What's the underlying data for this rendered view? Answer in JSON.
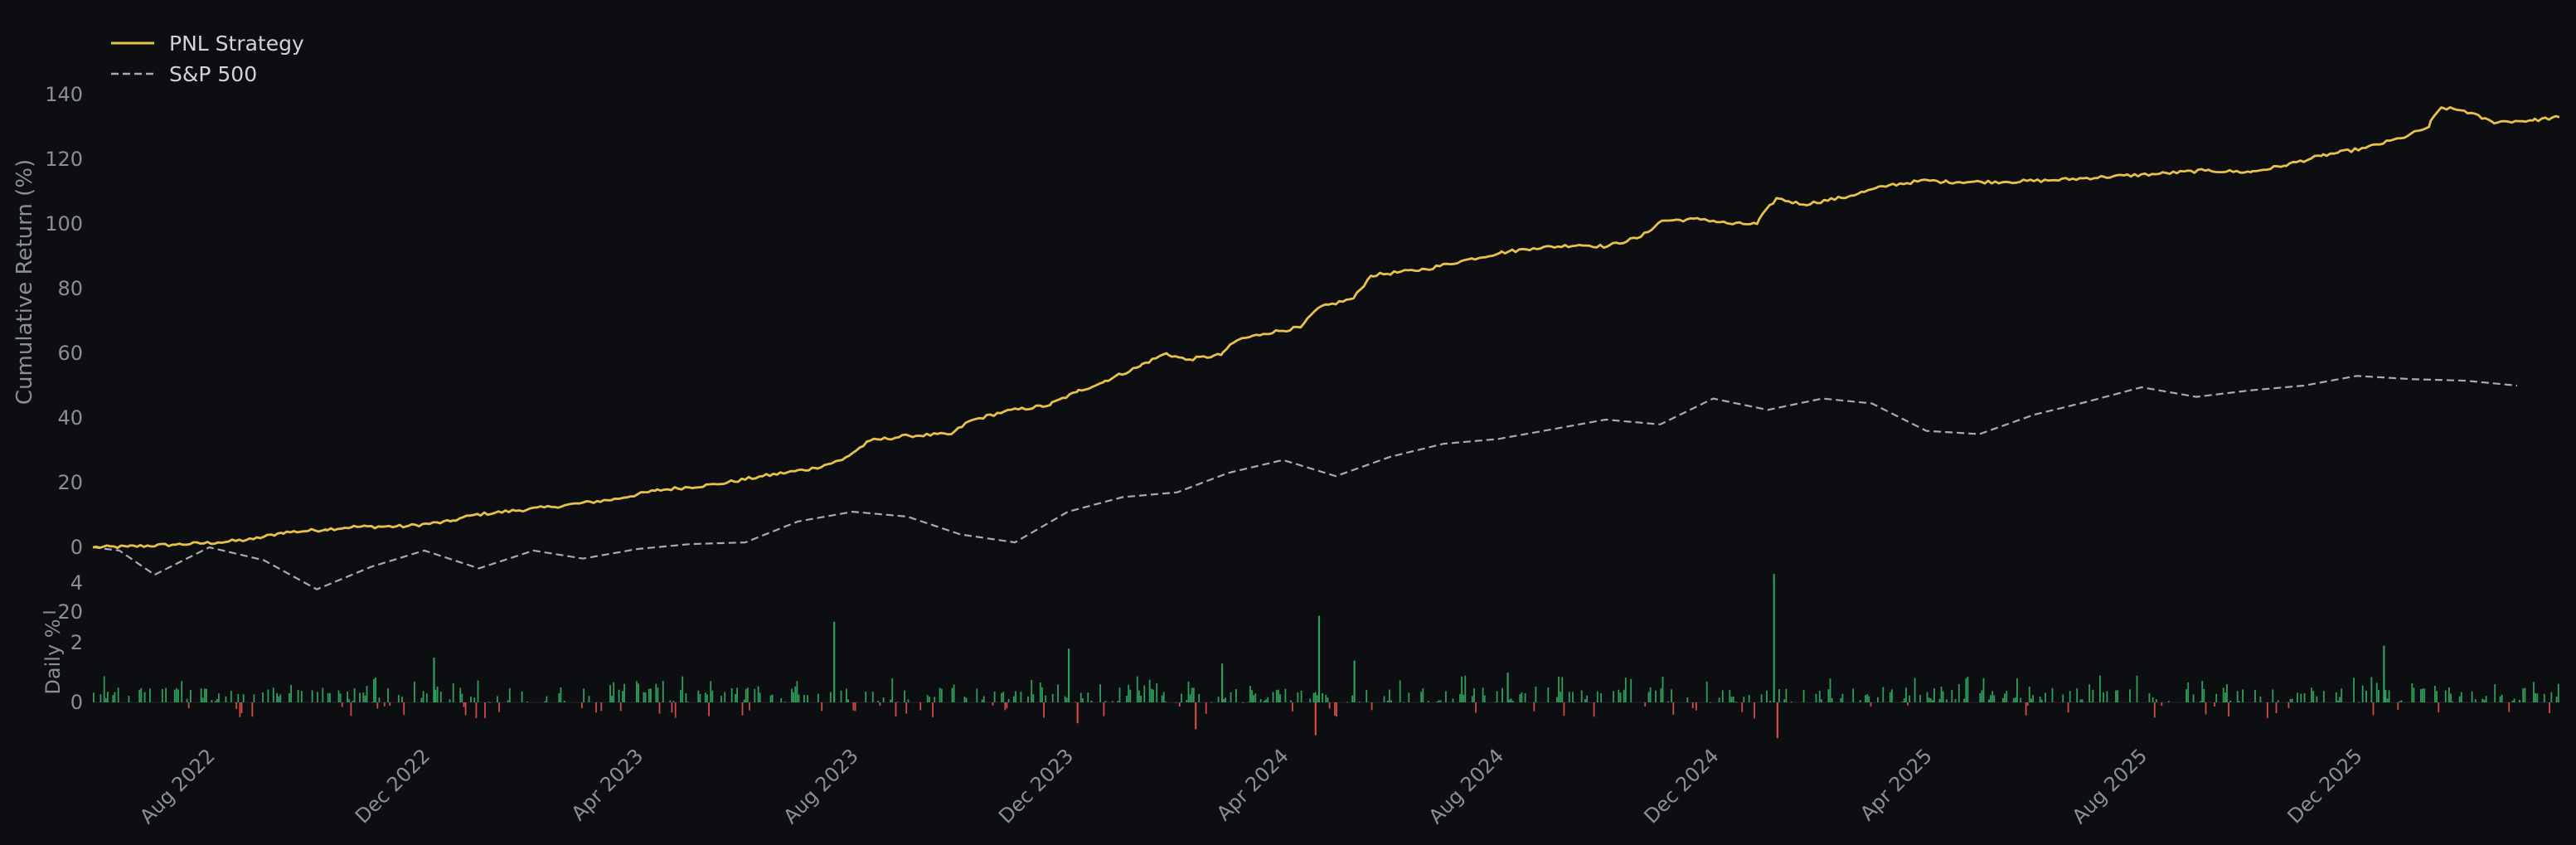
{
  "chart_data": [
    {
      "type": "line",
      "title": "",
      "xlabel": "",
      "ylabel": "Cumulative Return (%)",
      "ylim": [
        -22,
        142
      ],
      "yticks": [
        140,
        120,
        100,
        80,
        60,
        40,
        20,
        0,
        -20
      ],
      "ytick_labels": [
        "140",
        "120",
        "100",
        "80",
        "60",
        "40",
        "20",
        "0",
        "−20"
      ],
      "grid": false,
      "legend_position": "top-left",
      "series": [
        {
          "name": "PNL Strategy",
          "color": "#e8c14a",
          "style": "solid",
          "points": [
            [
              "2022-05-26",
              0
            ],
            [
              "2022-06-15",
              0.2
            ],
            [
              "2022-07-10",
              0.8
            ],
            [
              "2022-08-05",
              1.5
            ],
            [
              "2022-08-25",
              2.5
            ],
            [
              "2022-09-10",
              4.5
            ],
            [
              "2022-10-05",
              5.5
            ],
            [
              "2022-10-20",
              6.3
            ],
            [
              "2022-11-20",
              6.5
            ],
            [
              "2022-12-15",
              8.0
            ],
            [
              "2022-12-28",
              10.0
            ],
            [
              "2023-02-10",
              12.5
            ],
            [
              "2023-03-20",
              15.0
            ],
            [
              "2023-04-10",
              17.5
            ],
            [
              "2023-05-15",
              19.5
            ],
            [
              "2023-06-10",
              22.0
            ],
            [
              "2023-07-10",
              24.5
            ],
            [
              "2023-07-25",
              27.0
            ],
            [
              "2023-08-10",
              33.0
            ],
            [
              "2023-09-01",
              34.5
            ],
            [
              "2023-09-25",
              35.0
            ],
            [
              "2023-10-05",
              39.0
            ],
            [
              "2023-10-25",
              42.0
            ],
            [
              "2023-11-20",
              44.0
            ],
            [
              "2023-12-05",
              48.0
            ],
            [
              "2023-12-20",
              51.0
            ],
            [
              "2024-01-10",
              56.0
            ],
            [
              "2024-01-25",
              60.0
            ],
            [
              "2024-02-05",
              58.0
            ],
            [
              "2024-02-25",
              59.5
            ],
            [
              "2024-03-05",
              64.0
            ],
            [
              "2024-03-20",
              66.0
            ],
            [
              "2024-04-10",
              68.0
            ],
            [
              "2024-04-20",
              74.0
            ],
            [
              "2024-05-10",
              77.0
            ],
            [
              "2024-05-20",
              84.0
            ],
            [
              "2024-06-20",
              86.0
            ],
            [
              "2024-07-10",
              88.5
            ],
            [
              "2024-08-01",
              91.0
            ],
            [
              "2024-08-20",
              92.5
            ],
            [
              "2024-09-15",
              93.5
            ],
            [
              "2024-10-01",
              93.0
            ],
            [
              "2024-10-20",
              96.0
            ],
            [
              "2024-11-01",
              101.0
            ],
            [
              "2024-11-25",
              101.5
            ],
            [
              "2024-12-10",
              100.0
            ],
            [
              "2024-12-25",
              100.0
            ],
            [
              "2025-01-05",
              108.0
            ],
            [
              "2025-01-20",
              106.0
            ],
            [
              "2025-02-15",
              108.5
            ],
            [
              "2025-03-10",
              112.0
            ],
            [
              "2025-04-01",
              113.5
            ],
            [
              "2025-04-10",
              113.0
            ],
            [
              "2025-05-15",
              113.0
            ],
            [
              "2025-06-10",
              113.5
            ],
            [
              "2025-07-10",
              114.5
            ],
            [
              "2025-08-10",
              115.5
            ],
            [
              "2025-09-05",
              116.5
            ],
            [
              "2025-10-01",
              116.0
            ],
            [
              "2025-10-20",
              118.0
            ],
            [
              "2025-11-10",
              121.0
            ],
            [
              "2025-12-05",
              123.5
            ],
            [
              "2025-12-25",
              126.5
            ],
            [
              "2026-01-10",
              130.0
            ],
            [
              "2026-01-17",
              136.0
            ],
            [
              "2026-01-30",
              135.0
            ],
            [
              "2026-02-15",
              131.5
            ],
            [
              "2026-03-10",
              132.0
            ],
            [
              "2026-03-25",
              133.0
            ]
          ]
        },
        {
          "name": "S&P 500",
          "color": "#a9abb0",
          "style": "dashed",
          "points": [
            [
              "2022-05-26",
              0
            ],
            [
              "2022-06-10",
              -1
            ],
            [
              "2022-06-30",
              -8.5
            ],
            [
              "2022-07-31",
              0
            ],
            [
              "2022-08-31",
              -4
            ],
            [
              "2022-09-30",
              -13
            ],
            [
              "2022-10-31",
              -6
            ],
            [
              "2022-11-30",
              -1
            ],
            [
              "2022-12-31",
              -6.5
            ],
            [
              "2023-01-31",
              -1
            ],
            [
              "2023-02-28",
              -3.5
            ],
            [
              "2023-03-31",
              -0.5
            ],
            [
              "2023-04-30",
              1
            ],
            [
              "2023-05-31",
              1.5
            ],
            [
              "2023-06-30",
              8
            ],
            [
              "2023-07-31",
              11
            ],
            [
              "2023-08-31",
              9.5
            ],
            [
              "2023-09-30",
              4
            ],
            [
              "2023-10-31",
              1.5
            ],
            [
              "2023-11-30",
              11
            ],
            [
              "2023-12-31",
              15.5
            ],
            [
              "2024-01-31",
              17
            ],
            [
              "2024-02-29",
              23
            ],
            [
              "2024-03-31",
              27
            ],
            [
              "2024-04-30",
              22
            ],
            [
              "2024-05-31",
              28
            ],
            [
              "2024-06-30",
              32
            ],
            [
              "2024-07-31",
              33.5
            ],
            [
              "2024-08-31",
              36.5
            ],
            [
              "2024-09-30",
              39.5
            ],
            [
              "2024-10-31",
              38
            ],
            [
              "2024-11-30",
              46
            ],
            [
              "2024-12-31",
              42.5
            ],
            [
              "2025-01-31",
              46
            ],
            [
              "2025-02-28",
              44.5
            ],
            [
              "2025-03-31",
              36
            ],
            [
              "2025-04-30",
              35
            ],
            [
              "2025-05-31",
              41
            ],
            [
              "2025-06-30",
              45
            ],
            [
              "2025-07-31",
              49.5
            ],
            [
              "2025-08-31",
              46.5
            ],
            [
              "2025-09-30",
              48.5
            ],
            [
              "2025-10-31",
              50
            ],
            [
              "2025-11-30",
              53
            ],
            [
              "2025-12-31",
              52
            ],
            [
              "2026-01-31",
              51.5
            ],
            [
              "2026-03-01",
              50
            ]
          ]
        }
      ]
    },
    {
      "type": "bar",
      "title": "",
      "xlabel": "",
      "ylabel": "Daily %",
      "ylim": [
        -1.2,
        4.3
      ],
      "yticks": [
        4,
        2,
        0
      ],
      "ytick_labels": [
        "4",
        "2",
        "0"
      ],
      "grid": false,
      "positive_color": "#2e9e5b",
      "negative_color": "#d14b47",
      "x_range": [
        "2022-05-26",
        "2026-03-25"
      ],
      "series": [
        {
          "name": "",
          "highlight_values": [
            [
              "2022-12-05",
              1.5
            ],
            [
              "2023-07-20",
              2.7
            ],
            [
              "2023-11-30",
              1.8
            ],
            [
              "2024-04-20",
              2.9
            ],
            [
              "2024-05-10",
              1.4
            ],
            [
              "2025-01-03",
              4.3
            ],
            [
              "2024-02-25",
              1.3
            ],
            [
              "2024-08-05",
              1.0
            ],
            [
              "2025-12-15",
              1.9
            ],
            [
              "2024-04-18",
              -1.1
            ],
            [
              "2025-01-05",
              -1.2
            ],
            [
              "2023-12-05",
              -0.7
            ],
            [
              "2024-02-10",
              -0.9
            ]
          ]
        }
      ],
      "xtick_labels": [
        "Aug 2022",
        "Dec 2022",
        "Apr 2023",
        "Aug 2023",
        "Dec 2023",
        "Apr 2024",
        "Aug 2024",
        "Dec 2024",
        "Apr 2025",
        "Aug 2025",
        "Dec 2025"
      ],
      "xtick_dates": [
        "2022-08-01",
        "2022-12-01",
        "2023-04-01",
        "2023-08-01",
        "2023-12-01",
        "2024-04-01",
        "2024-08-01",
        "2024-12-01",
        "2025-04-01",
        "2025-08-01",
        "2025-12-01"
      ]
    }
  ]
}
